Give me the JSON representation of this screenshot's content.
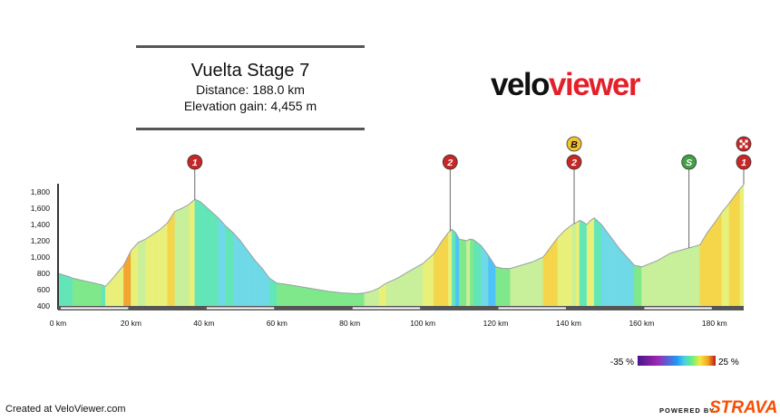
{
  "header": {
    "title": "Vuelta Stage 7",
    "distance": "Distance: 188.0 km",
    "elevation_gain": "Elevation gain: 4,455 m"
  },
  "logo": {
    "part1": "velo",
    "part2": "viewer"
  },
  "footer": {
    "created": "Created at VeloViewer.com",
    "powered": "POWERED BY",
    "strava": "STRAVA"
  },
  "legend": {
    "min_label": "-35 %",
    "max_label": "25 %"
  },
  "chart_data": {
    "type": "area",
    "title": "",
    "xlabel": "",
    "ylabel": "",
    "x_unit": "km",
    "xlim": [
      0,
      188
    ],
    "ylim": [
      400,
      1900
    ],
    "x_ticks": [
      0,
      20,
      40,
      60,
      80,
      100,
      120,
      140,
      160,
      180
    ],
    "x_tick_labels": [
      "0 km",
      "20 km",
      "40 km",
      "60 km",
      "80 km",
      "100 km",
      "120 km",
      "140 km",
      "160 km",
      "180 km"
    ],
    "y_ticks": [
      400,
      600,
      800,
      1000,
      1200,
      1400,
      1600,
      1800
    ],
    "y_tick_labels": [
      "400",
      "600",
      "800",
      "1,000",
      "1,200",
      "1,400",
      "1,600",
      "1,800"
    ],
    "profile": {
      "x": [
        0,
        3,
        4,
        8,
        12,
        13,
        15,
        18,
        20,
        22,
        24,
        26,
        28,
        30,
        32,
        34,
        36,
        37.5,
        39,
        40,
        42,
        44,
        46,
        48,
        50,
        52,
        54,
        56,
        58,
        60,
        62,
        66,
        70,
        74,
        78,
        82,
        84,
        86,
        88,
        90,
        93,
        96,
        100,
        103,
        105,
        107,
        108,
        109,
        110,
        112,
        113,
        114,
        116,
        118,
        120,
        122,
        124,
        127,
        130,
        133,
        135,
        137,
        139,
        141,
        142,
        143,
        144,
        145,
        146,
        147,
        148,
        149,
        150,
        152,
        154,
        156,
        158,
        160,
        164,
        168,
        172,
        176,
        178,
        180,
        182,
        184,
        186,
        187,
        188
      ],
      "y": [
        800,
        760,
        740,
        700,
        660,
        640,
        740,
        900,
        1080,
        1180,
        1220,
        1280,
        1340,
        1420,
        1560,
        1600,
        1650,
        1710,
        1680,
        1640,
        1560,
        1480,
        1380,
        1300,
        1200,
        1080,
        960,
        860,
        740,
        680,
        670,
        640,
        610,
        580,
        560,
        550,
        560,
        580,
        620,
        680,
        740,
        820,
        920,
        1040,
        1180,
        1300,
        1340,
        1300,
        1220,
        1200,
        1220,
        1210,
        1140,
        1020,
        880,
        860,
        860,
        900,
        940,
        1000,
        1120,
        1240,
        1330,
        1400,
        1420,
        1450,
        1430,
        1400,
        1450,
        1480,
        1440,
        1400,
        1340,
        1220,
        1100,
        1000,
        900,
        880,
        950,
        1050,
        1100,
        1150,
        1300,
        1420,
        1550,
        1660,
        1780,
        1840,
        1890
      ]
    },
    "climbs": [
      {
        "km": 37.5,
        "label": "1",
        "color": "#c62828"
      },
      {
        "km": 107.5,
        "label": "2",
        "color": "#c62828"
      },
      {
        "km": 141.5,
        "label": "2",
        "color": "#c62828",
        "extra_label": "B",
        "extra_color": "#f2c230"
      },
      {
        "km": 173,
        "label": "S",
        "color": "#43a047"
      },
      {
        "km": 188,
        "label": "1",
        "color": "#c62828",
        "finish": true
      }
    ],
    "gradient_scale": {
      "min": -35,
      "max": 25,
      "unit": "%"
    }
  }
}
